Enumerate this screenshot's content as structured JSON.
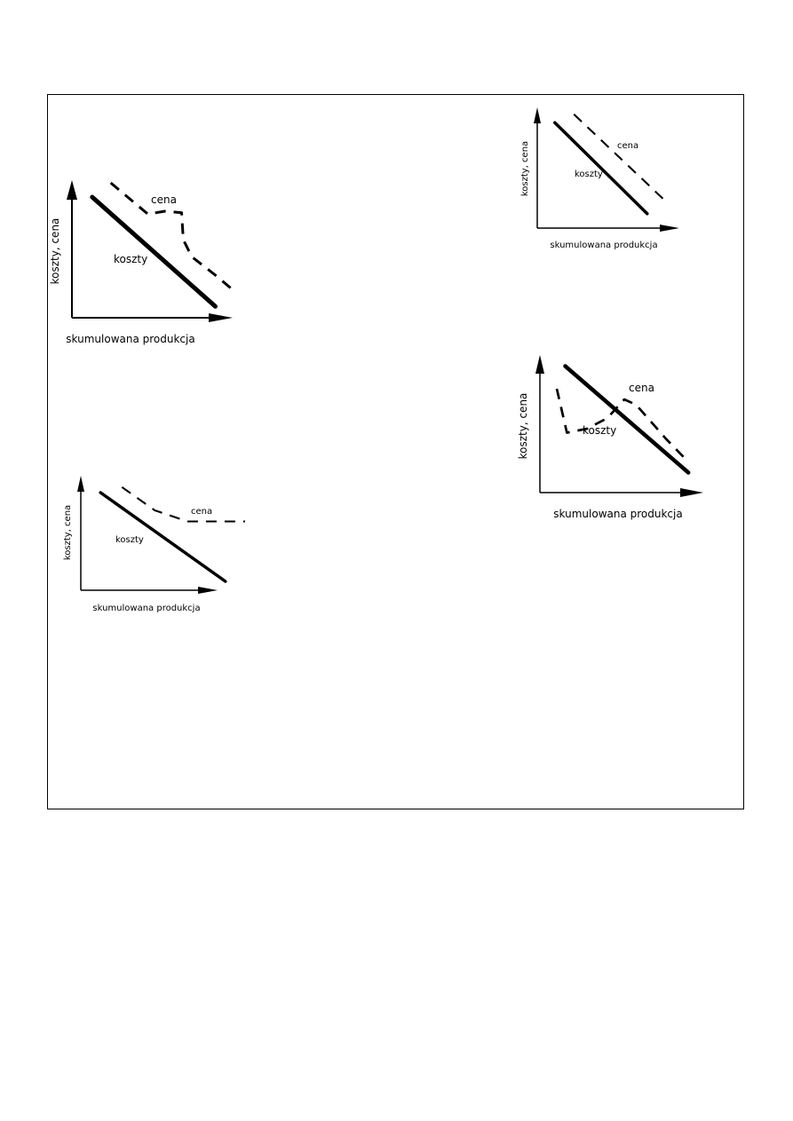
{
  "charts": [
    {
      "id": "p1",
      "type": "line",
      "xlabel": "skumulowana produkcja",
      "ylabel": "koszty, cena",
      "series": [
        {
          "name": "koszty",
          "style": "solid",
          "color": "#000000",
          "points": [
            [
              0.12,
              0.85
            ],
            [
              0.85,
              0.08
            ]
          ]
        },
        {
          "name": "cena",
          "style": "dashed",
          "color": "#000000",
          "points": [
            [
              0.23,
              0.95
            ],
            [
              0.45,
              0.73
            ],
            [
              0.55,
              0.75
            ],
            [
              0.65,
              0.74
            ],
            [
              0.66,
              0.55
            ],
            [
              0.71,
              0.43
            ],
            [
              0.85,
              0.3
            ],
            [
              0.95,
              0.2
            ]
          ]
        }
      ]
    },
    {
      "id": "p2",
      "type": "line",
      "xlabel": "skumulowana produkcja",
      "ylabel": "koszty, cena",
      "series": [
        {
          "name": "koszty",
          "style": "solid",
          "color": "#000000",
          "points": [
            [
              0.12,
              0.88
            ],
            [
              0.75,
              0.12
            ]
          ]
        },
        {
          "name": "cena",
          "style": "dashed",
          "color": "#000000",
          "points": [
            [
              0.25,
              0.95
            ],
            [
              0.88,
              0.22
            ]
          ]
        }
      ]
    },
    {
      "id": "p3",
      "type": "line",
      "xlabel": "skumulowana produkcja",
      "ylabel": "koszty, cena",
      "series": [
        {
          "name": "koszty",
          "style": "solid",
          "color": "#000000",
          "points": [
            [
              0.12,
              0.88
            ],
            [
              0.88,
              0.08
            ]
          ]
        },
        {
          "name": "cena",
          "style": "dashed",
          "color": "#000000",
          "points": [
            [
              0.25,
              0.93
            ],
            [
              0.45,
              0.72
            ],
            [
              0.65,
              0.62
            ],
            [
              1.0,
              0.62
            ]
          ]
        }
      ]
    },
    {
      "id": "p4",
      "type": "line",
      "xlabel": "skumulowana produkcja",
      "ylabel": "koszty, cena",
      "series": [
        {
          "name": "koszty",
          "style": "solid",
          "color": "#000000",
          "points": [
            [
              0.15,
              0.95
            ],
            [
              0.88,
              0.15
            ]
          ]
        },
        {
          "name": "cena",
          "style": "dashed",
          "color": "#000000",
          "points": [
            [
              0.1,
              0.78
            ],
            [
              0.16,
              0.45
            ],
            [
              0.28,
              0.48
            ],
            [
              0.4,
              0.56
            ],
            [
              0.5,
              0.7
            ],
            [
              0.57,
              0.66
            ],
            [
              0.75,
              0.4
            ],
            [
              0.88,
              0.23
            ]
          ]
        }
      ]
    }
  ]
}
